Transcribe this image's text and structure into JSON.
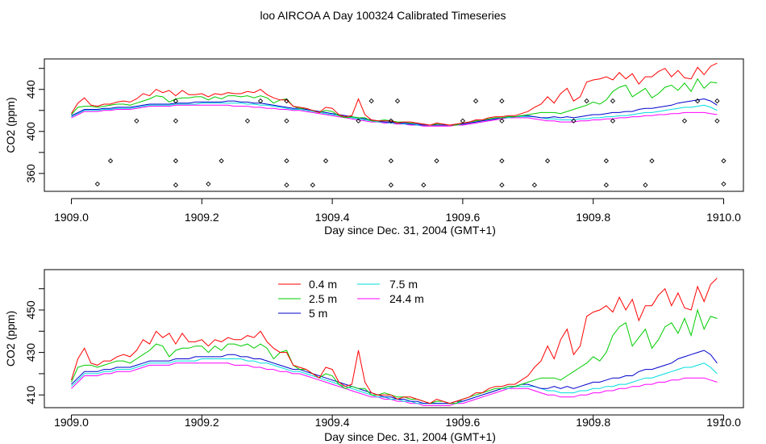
{
  "title": "loo AIRCOA A  Day 100324  Calibrated Timeseries",
  "chart_data": [
    {
      "type": "line",
      "xlabel": "Day since Dec. 31, 2004 (GMT+1)",
      "ylabel": "CO2 (ppm)",
      "xlim": [
        1909.0,
        1910.0
      ],
      "ylim": [
        343,
        469
      ],
      "xticks": [
        "1909.0",
        "1909.2",
        "1909.4",
        "1909.6",
        "1909.8",
        "1910.0"
      ],
      "yticks": [
        "360",
        "400",
        "440"
      ],
      "ytick_values": [
        360,
        400,
        440
      ],
      "y_minor_ticks": [
        380,
        420,
        460
      ],
      "x": [
        1909.0,
        1909.01,
        1909.02,
        1909.03,
        1909.04,
        1909.05,
        1909.06,
        1909.07,
        1909.08,
        1909.09,
        1909.1,
        1909.11,
        1909.12,
        1909.13,
        1909.14,
        1909.15,
        1909.16,
        1909.17,
        1909.18,
        1909.19,
        1909.2,
        1909.21,
        1909.22,
        1909.23,
        1909.24,
        1909.25,
        1909.26,
        1909.27,
        1909.28,
        1909.29,
        1909.3,
        1909.31,
        1909.32,
        1909.33,
        1909.34,
        1909.35,
        1909.36,
        1909.37,
        1909.38,
        1909.39,
        1909.4,
        1909.41,
        1909.42,
        1909.43,
        1909.44,
        1909.45,
        1909.46,
        1909.47,
        1909.48,
        1909.49,
        1909.5,
        1909.51,
        1909.52,
        1909.53,
        1909.54,
        1909.55,
        1909.56,
        1909.57,
        1909.58,
        1909.59,
        1909.6,
        1909.61,
        1909.62,
        1909.63,
        1909.64,
        1909.65,
        1909.66,
        1909.67,
        1909.68,
        1909.69,
        1909.7,
        1909.71,
        1909.72,
        1909.73,
        1909.74,
        1909.75,
        1909.76,
        1909.77,
        1909.78,
        1909.79,
        1909.8,
        1909.81,
        1909.82,
        1909.83,
        1909.84,
        1909.85,
        1909.86,
        1909.87,
        1909.88,
        1909.89,
        1909.9,
        1909.91,
        1909.92,
        1909.93,
        1909.94,
        1909.95,
        1909.96,
        1909.97,
        1909.98,
        1909.99
      ],
      "series": [
        {
          "name": "0.4 m",
          "color": "#ff0000",
          "values": [
            417,
            427,
            432,
            425,
            424,
            426,
            426,
            428,
            429,
            428,
            431,
            436,
            434,
            440,
            437,
            439,
            434,
            439,
            435,
            435,
            436,
            433,
            436,
            435,
            437,
            436,
            436,
            438,
            437,
            440,
            435,
            432,
            430,
            430,
            424,
            423,
            422,
            420,
            418,
            423,
            422,
            416,
            414,
            415,
            431,
            416,
            411,
            410,
            410,
            410,
            408,
            409,
            409,
            408,
            407,
            406,
            408,
            407,
            406,
            407,
            408,
            409,
            411,
            411,
            413,
            414,
            414,
            415,
            415,
            417,
            419,
            423,
            426,
            433,
            427,
            436,
            441,
            429,
            433,
            447,
            449,
            450,
            452,
            449,
            456,
            450,
            455,
            445,
            452,
            452,
            457,
            460,
            452,
            458,
            451,
            450,
            461,
            454,
            462,
            465
          ]
        },
        {
          "name": "2.5 m",
          "color": "#00cc00",
          "values": [
            416,
            423,
            424,
            424,
            423,
            424,
            425,
            426,
            426,
            425,
            427,
            429,
            431,
            434,
            433,
            428,
            431,
            432,
            432,
            433,
            433,
            430,
            433,
            431,
            434,
            434,
            433,
            434,
            432,
            434,
            432,
            427,
            430,
            431,
            424,
            422,
            422,
            420,
            418,
            420,
            419,
            415,
            413,
            414,
            413,
            413,
            410,
            410,
            411,
            410,
            409,
            409,
            408,
            408,
            407,
            406,
            407,
            407,
            406,
            406,
            408,
            409,
            410,
            411,
            412,
            413,
            413,
            414,
            414,
            415,
            416,
            417,
            418,
            418,
            418,
            417,
            419,
            421,
            423,
            425,
            428,
            426,
            430,
            438,
            442,
            444,
            433,
            437,
            441,
            432,
            436,
            442,
            444,
            439,
            446,
            438,
            450,
            441,
            447,
            446
          ]
        },
        {
          "name": "5 m",
          "color": "#0000cc",
          "values": [
            415,
            418,
            421,
            421,
            421,
            422,
            422,
            423,
            423,
            423,
            424,
            425,
            426,
            426,
            426,
            426,
            427,
            427,
            427,
            428,
            428,
            428,
            428,
            428,
            429,
            429,
            428,
            428,
            427,
            427,
            426,
            425,
            424,
            423,
            422,
            422,
            421,
            420,
            419,
            418,
            417,
            416,
            415,
            414,
            413,
            412,
            411,
            410,
            409,
            409,
            408,
            408,
            407,
            407,
            406,
            406,
            406,
            406,
            406,
            407,
            407,
            408,
            409,
            410,
            411,
            412,
            413,
            414,
            414,
            415,
            415,
            414,
            413,
            413,
            414,
            413,
            414,
            413,
            414,
            415,
            416,
            416,
            417,
            418,
            418,
            419,
            419,
            421,
            422,
            422,
            423,
            424,
            425,
            427,
            428,
            429,
            430,
            431,
            429,
            425
          ]
        },
        {
          "name": "7.5 m",
          "color": "#00dddd",
          "values": [
            414,
            417,
            420,
            420,
            420,
            421,
            421,
            422,
            422,
            422,
            423,
            424,
            425,
            425,
            425,
            425,
            426,
            426,
            426,
            426,
            427,
            427,
            427,
            427,
            427,
            427,
            427,
            426,
            426,
            425,
            425,
            424,
            423,
            422,
            421,
            421,
            420,
            419,
            418,
            417,
            416,
            415,
            414,
            413,
            412,
            411,
            410,
            409,
            409,
            408,
            408,
            407,
            407,
            406,
            406,
            406,
            406,
            406,
            406,
            406,
            407,
            408,
            409,
            410,
            411,
            412,
            413,
            413,
            414,
            414,
            414,
            414,
            413,
            412,
            412,
            411,
            411,
            411,
            412,
            412,
            413,
            413,
            414,
            414,
            415,
            415,
            416,
            417,
            418,
            418,
            419,
            420,
            421,
            422,
            423,
            423,
            424,
            425,
            423,
            420
          ]
        },
        {
          "name": "24.4 m",
          "color": "#ff00ff",
          "values": [
            413,
            416,
            419,
            419,
            419,
            420,
            420,
            421,
            421,
            421,
            422,
            423,
            424,
            424,
            424,
            424,
            425,
            425,
            425,
            425,
            425,
            425,
            425,
            425,
            425,
            424,
            424,
            424,
            423,
            423,
            422,
            422,
            421,
            421,
            420,
            420,
            419,
            418,
            417,
            416,
            415,
            414,
            413,
            412,
            411,
            410,
            409,
            409,
            408,
            408,
            407,
            407,
            406,
            406,
            405,
            405,
            405,
            405,
            405,
            406,
            406,
            407,
            408,
            409,
            410,
            411,
            412,
            413,
            413,
            413,
            413,
            412,
            411,
            410,
            410,
            409,
            409,
            409,
            410,
            410,
            411,
            411,
            412,
            412,
            413,
            413,
            414,
            414,
            415,
            415,
            416,
            416,
            417,
            417,
            418,
            418,
            418,
            418,
            417,
            416
          ]
        }
      ],
      "points": [
        {
          "x": 1909.04,
          "y": 350
        },
        {
          "x": 1909.06,
          "y": 372
        },
        {
          "x": 1909.1,
          "y": 410
        },
        {
          "x": 1909.16,
          "y": 349
        },
        {
          "x": 1909.16,
          "y": 372
        },
        {
          "x": 1909.16,
          "y": 410
        },
        {
          "x": 1909.16,
          "y": 429
        },
        {
          "x": 1909.21,
          "y": 350
        },
        {
          "x": 1909.23,
          "y": 372
        },
        {
          "x": 1909.27,
          "y": 410
        },
        {
          "x": 1909.29,
          "y": 429
        },
        {
          "x": 1909.33,
          "y": 349
        },
        {
          "x": 1909.33,
          "y": 372
        },
        {
          "x": 1909.33,
          "y": 410
        },
        {
          "x": 1909.33,
          "y": 429
        },
        {
          "x": 1909.37,
          "y": 349
        },
        {
          "x": 1909.39,
          "y": 372
        },
        {
          "x": 1909.44,
          "y": 410
        },
        {
          "x": 1909.46,
          "y": 429
        },
        {
          "x": 1909.49,
          "y": 349
        },
        {
          "x": 1909.49,
          "y": 372
        },
        {
          "x": 1909.49,
          "y": 410
        },
        {
          "x": 1909.5,
          "y": 429
        },
        {
          "x": 1909.54,
          "y": 349
        },
        {
          "x": 1909.56,
          "y": 372
        },
        {
          "x": 1909.6,
          "y": 410
        },
        {
          "x": 1909.62,
          "y": 429
        },
        {
          "x": 1909.66,
          "y": 349
        },
        {
          "x": 1909.66,
          "y": 372
        },
        {
          "x": 1909.66,
          "y": 410
        },
        {
          "x": 1909.66,
          "y": 429
        },
        {
          "x": 1909.71,
          "y": 349
        },
        {
          "x": 1909.73,
          "y": 372
        },
        {
          "x": 1909.77,
          "y": 410
        },
        {
          "x": 1909.79,
          "y": 429
        },
        {
          "x": 1909.82,
          "y": 349
        },
        {
          "x": 1909.82,
          "y": 372
        },
        {
          "x": 1909.83,
          "y": 410
        },
        {
          "x": 1909.83,
          "y": 429
        },
        {
          "x": 1909.88,
          "y": 349
        },
        {
          "x": 1909.89,
          "y": 372
        },
        {
          "x": 1909.94,
          "y": 410
        },
        {
          "x": 1909.96,
          "y": 429
        },
        {
          "x": 1909.99,
          "y": 410
        },
        {
          "x": 1909.99,
          "y": 429
        },
        {
          "x": 1910.0,
          "y": 372
        },
        {
          "x": 1910.0,
          "y": 350
        }
      ]
    },
    {
      "type": "line",
      "xlabel": "Day since Dec. 31, 2004 (GMT+1)",
      "ylabel": "CO2 (ppm)",
      "xlim": [
        1909.0,
        1910.0
      ],
      "ylim": [
        404,
        469
      ],
      "xticks": [
        "1909.0",
        "1909.2",
        "1909.4",
        "1909.6",
        "1909.8",
        "1910.0"
      ],
      "yticks": [
        "410",
        "430",
        "450"
      ],
      "ytick_values": [
        410,
        430,
        450
      ],
      "y_minor_ticks": [
        420,
        440,
        460
      ],
      "legend": {
        "position": "top-left",
        "entries": [
          "0.4 m",
          "2.5 m",
          "5 m",
          "7.5 m",
          "24.4 m"
        ]
      },
      "series_ref": "same series values as the upper panel"
    }
  ]
}
